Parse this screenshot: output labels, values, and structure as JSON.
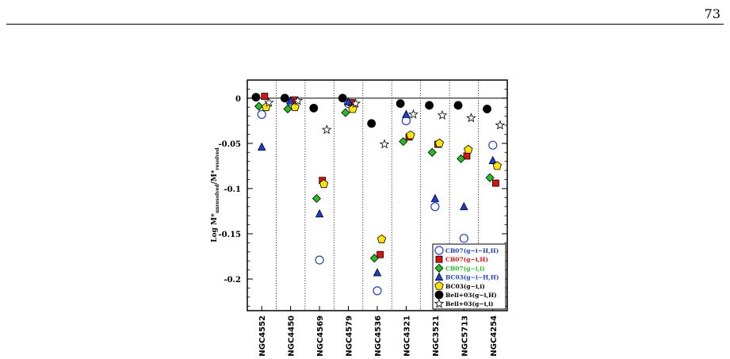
{
  "page": {
    "number": "73"
  },
  "chart_data": {
    "type": "scatter",
    "ylabel_main": "Log M*",
    "ylabel_sub1": "unresolved",
    "ylabel_mid": "/M*",
    "ylabel_sub2": "resolved",
    "ylim": [
      -0.235,
      0.02
    ],
    "yticks": [
      0,
      -0.05,
      -0.1,
      -0.15,
      -0.2
    ],
    "ytick_labels": [
      "0",
      "-0.05",
      "-0.1",
      "-0.15",
      "-0.2"
    ],
    "reference_line": 0,
    "categories": [
      "NGC4552",
      "NGC4450",
      "NGC4569",
      "NGC4579",
      "NGC4536",
      "NGC4321",
      "NGC3521",
      "NGC5713",
      "NGC4254"
    ],
    "legend_position": "bottom-right",
    "series": [
      {
        "name": "CB07(g−i−H,H)",
        "label_color": "#1a3fd6",
        "marker": "open-circle",
        "color": "#1a3fd6",
        "offset": 0.0,
        "values": [
          -0.018,
          -0.004,
          -0.179,
          -0.006,
          -0.213,
          -0.025,
          -0.12,
          -0.155,
          -0.052
        ]
      },
      {
        "name": "CB07(g−i,H)",
        "label_color": "#e01010",
        "marker": "square",
        "color": "#e01010",
        "offset": 0.1,
        "values": [
          0.002,
          -0.002,
          -0.091,
          -0.005,
          -0.173,
          -0.043,
          -0.051,
          -0.064,
          -0.094
        ]
      },
      {
        "name": "CB07(g−i,i)",
        "label_color": "#20c020",
        "marker": "diamond",
        "color": "#20c020",
        "offset": -0.1,
        "values": [
          -0.009,
          -0.012,
          -0.111,
          -0.016,
          -0.177,
          -0.048,
          -0.06,
          -0.067,
          -0.088
        ]
      },
      {
        "name": "BC03(g−i−H,H)",
        "label_color": "#1a3fd6",
        "marker": "triangle",
        "color": "#1a3fd6",
        "offset": 0.0,
        "values": [
          -0.054,
          -0.003,
          -0.128,
          -0.004,
          -0.193,
          -0.018,
          -0.111,
          -0.12,
          -0.069
        ]
      },
      {
        "name": "BC03(g−i,i)",
        "label_color": "#000000",
        "marker": "pentagon",
        "color": "#ffe600",
        "offset": 0.15,
        "values": [
          -0.01,
          -0.01,
          -0.095,
          -0.012,
          -0.156,
          -0.041,
          -0.05,
          -0.057,
          -0.075
        ]
      },
      {
        "name": "Bell+03(g−i,H)",
        "label_color": "#000000",
        "marker": "filled-circle",
        "color": "#000000",
        "offset": -0.2,
        "values": [
          0.001,
          0.0,
          -0.011,
          0.0,
          -0.028,
          -0.006,
          -0.008,
          -0.008,
          -0.012
        ]
      },
      {
        "name": "Bell+03(g−i,i)",
        "label_color": "#000000",
        "marker": "star",
        "color": "#ffffff",
        "offset": 0.25,
        "values": [
          -0.005,
          -0.003,
          -0.035,
          -0.006,
          -0.051,
          -0.018,
          -0.019,
          -0.022,
          -0.03
        ]
      }
    ]
  }
}
